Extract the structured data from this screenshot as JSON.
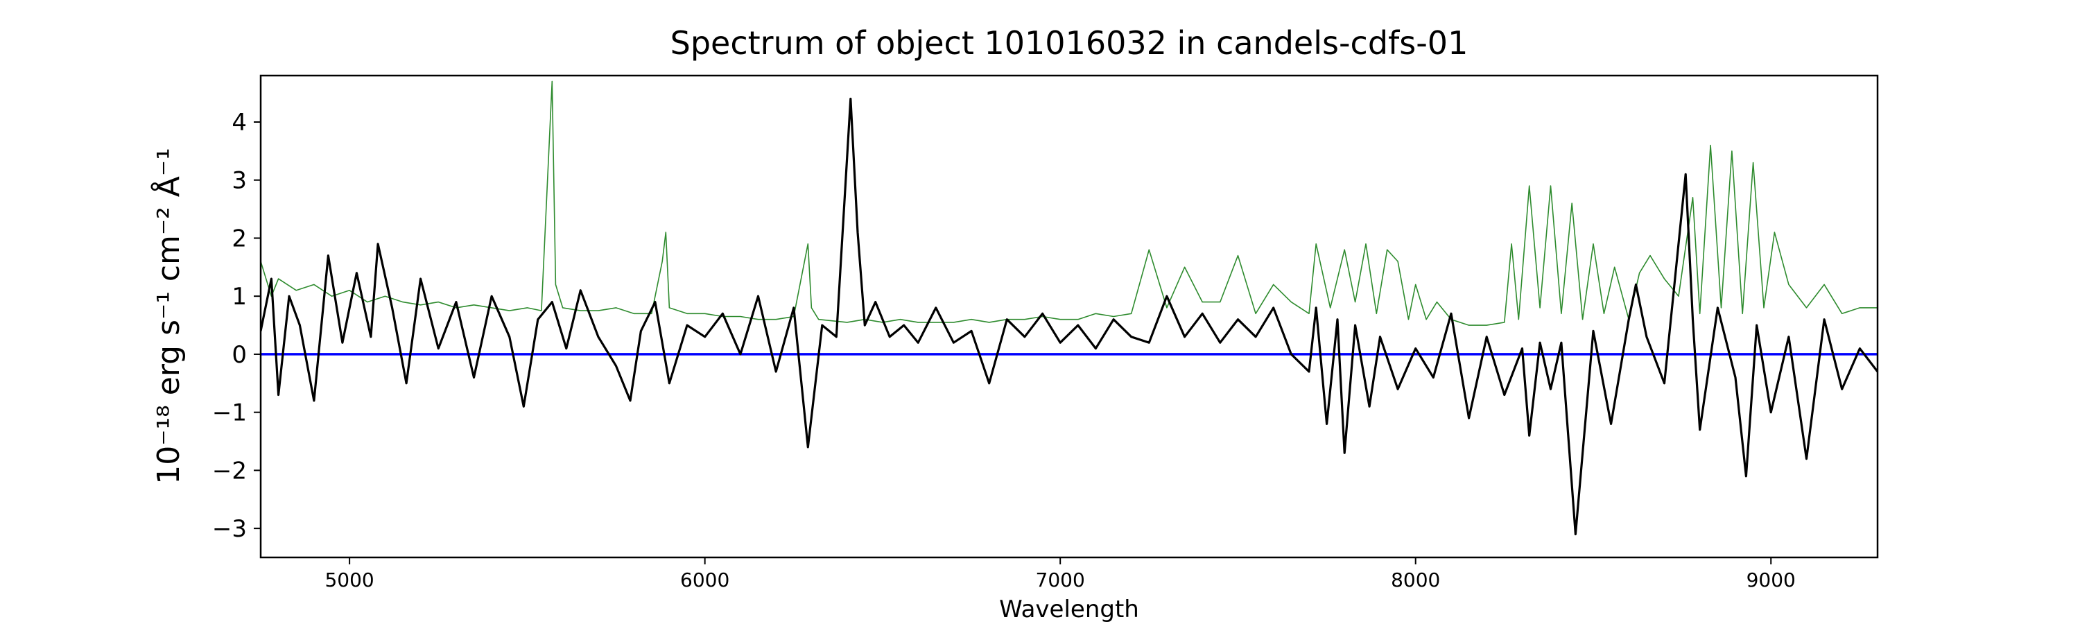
{
  "chart_data": {
    "type": "line",
    "title": "Spectrum of object 101016032 in candels-cdfs-01",
    "xlabel": "Wavelength",
    "ylabel": "10⁻¹⁸ erg s⁻¹ cm⁻² Å⁻¹",
    "xlim": [
      4750,
      9300
    ],
    "ylim": [
      -3.5,
      4.8
    ],
    "x_ticks": [
      5000,
      6000,
      7000,
      8000,
      9000
    ],
    "y_ticks": [
      -3,
      -2,
      -1,
      0,
      1,
      2,
      3,
      4
    ],
    "grid": false,
    "colors": {
      "flux": "#000000",
      "error": "#2e8b2e",
      "zero": "#0000ff"
    },
    "series": [
      {
        "role": "flux",
        "x": [
          4750,
          4780,
          4800,
          4830,
          4860,
          4900,
          4940,
          4980,
          5020,
          5060,
          5080,
          5120,
          5160,
          5200,
          5250,
          5300,
          5350,
          5400,
          5450,
          5490,
          5530,
          5570,
          5610,
          5650,
          5700,
          5750,
          5790,
          5820,
          5860,
          5900,
          5950,
          6000,
          6050,
          6100,
          6150,
          6200,
          6250,
          6290,
          6330,
          6370,
          6410,
          6430,
          6450,
          6480,
          6520,
          6560,
          6600,
          6650,
          6700,
          6750,
          6800,
          6850,
          6900,
          6950,
          7000,
          7050,
          7100,
          7150,
          7200,
          7250,
          7300,
          7350,
          7400,
          7450,
          7500,
          7550,
          7600,
          7650,
          7700,
          7720,
          7750,
          7780,
          7800,
          7830,
          7870,
          7900,
          7950,
          8000,
          8050,
          8100,
          8150,
          8200,
          8250,
          8300,
          8320,
          8350,
          8380,
          8410,
          8450,
          8500,
          8550,
          8600,
          8620,
          8650,
          8700,
          8760,
          8780,
          8800,
          8850,
          8900,
          8930,
          8960,
          9000,
          9050,
          9100,
          9150,
          9200,
          9250,
          9300
        ],
        "y": [
          0.4,
          1.3,
          -0.7,
          1.0,
          0.5,
          -0.8,
          1.7,
          0.2,
          1.4,
          0.3,
          1.9,
          0.8,
          -0.5,
          1.3,
          0.1,
          0.9,
          -0.4,
          1.0,
          0.3,
          -0.9,
          0.6,
          0.9,
          0.1,
          1.1,
          0.3,
          -0.2,
          -0.8,
          0.4,
          0.9,
          -0.5,
          0.5,
          0.3,
          0.7,
          0.0,
          1.0,
          -0.3,
          0.8,
          -1.6,
          0.5,
          0.3,
          4.4,
          2.1,
          0.5,
          0.9,
          0.3,
          0.5,
          0.2,
          0.8,
          0.2,
          0.4,
          -0.5,
          0.6,
          0.3,
          0.7,
          0.2,
          0.5,
          0.1,
          0.6,
          0.3,
          0.2,
          1.0,
          0.3,
          0.7,
          0.2,
          0.6,
          0.3,
          0.8,
          0.0,
          -0.3,
          0.8,
          -1.2,
          0.6,
          -1.7,
          0.5,
          -0.9,
          0.3,
          -0.6,
          0.1,
          -0.4,
          0.7,
          -1.1,
          0.3,
          -0.7,
          0.1,
          -1.4,
          0.2,
          -0.6,
          0.2,
          -3.1,
          0.4,
          -1.2,
          0.6,
          1.2,
          0.3,
          -0.5,
          3.1,
          0.6,
          -1.3,
          0.8,
          -0.4,
          -2.1,
          0.5,
          -1.0,
          0.3,
          -1.8,
          0.6,
          -0.6,
          0.1,
          -0.3
        ]
      },
      {
        "role": "error",
        "x": [
          4750,
          4780,
          4800,
          4850,
          4900,
          4950,
          5000,
          5050,
          5100,
          5150,
          5200,
          5250,
          5300,
          5350,
          5400,
          5450,
          5500,
          5540,
          5570,
          5580,
          5600,
          5650,
          5700,
          5750,
          5800,
          5850,
          5880,
          5890,
          5900,
          5950,
          6000,
          6050,
          6100,
          6150,
          6200,
          6250,
          6290,
          6300,
          6320,
          6400,
          6450,
          6500,
          6550,
          6600,
          6650,
          6700,
          6750,
          6800,
          6850,
          6900,
          6950,
          7000,
          7050,
          7100,
          7150,
          7200,
          7250,
          7300,
          7350,
          7400,
          7450,
          7500,
          7550,
          7600,
          7650,
          7700,
          7720,
          7760,
          7800,
          7830,
          7860,
          7890,
          7920,
          7950,
          7980,
          8000,
          8030,
          8060,
          8100,
          8150,
          8200,
          8250,
          8270,
          8290,
          8320,
          8350,
          8380,
          8410,
          8440,
          8470,
          8500,
          8530,
          8560,
          8600,
          8630,
          8660,
          8700,
          8740,
          8780,
          8800,
          8830,
          8860,
          8890,
          8920,
          8950,
          8980,
          9010,
          9050,
          9100,
          9150,
          9200,
          9250,
          9300
        ],
        "y": [
          1.6,
          1.0,
          1.3,
          1.1,
          1.2,
          1.0,
          1.1,
          0.9,
          1.0,
          0.9,
          0.85,
          0.9,
          0.8,
          0.85,
          0.8,
          0.75,
          0.8,
          0.75,
          4.7,
          1.2,
          0.8,
          0.75,
          0.75,
          0.8,
          0.7,
          0.7,
          1.6,
          2.1,
          0.8,
          0.7,
          0.7,
          0.65,
          0.65,
          0.6,
          0.6,
          0.65,
          1.9,
          0.8,
          0.6,
          0.55,
          0.6,
          0.55,
          0.6,
          0.55,
          0.55,
          0.55,
          0.6,
          0.55,
          0.6,
          0.6,
          0.65,
          0.6,
          0.6,
          0.7,
          0.65,
          0.7,
          1.8,
          0.8,
          1.5,
          0.9,
          0.9,
          1.7,
          0.7,
          1.2,
          0.9,
          0.7,
          1.9,
          0.8,
          1.8,
          0.9,
          1.9,
          0.7,
          1.8,
          1.6,
          0.6,
          1.2,
          0.6,
          0.9,
          0.6,
          0.5,
          0.5,
          0.55,
          1.9,
          0.6,
          2.9,
          0.8,
          2.9,
          0.7,
          2.6,
          0.6,
          1.9,
          0.7,
          1.5,
          0.6,
          1.4,
          1.7,
          1.3,
          1.0,
          2.7,
          0.7,
          3.6,
          0.8,
          3.5,
          0.7,
          3.3,
          0.8,
          2.1,
          1.2,
          0.8,
          1.2,
          0.7,
          0.8,
          0.8
        ]
      },
      {
        "role": "zero",
        "x": [
          4750,
          9300
        ],
        "y": [
          0,
          0
        ]
      }
    ]
  }
}
